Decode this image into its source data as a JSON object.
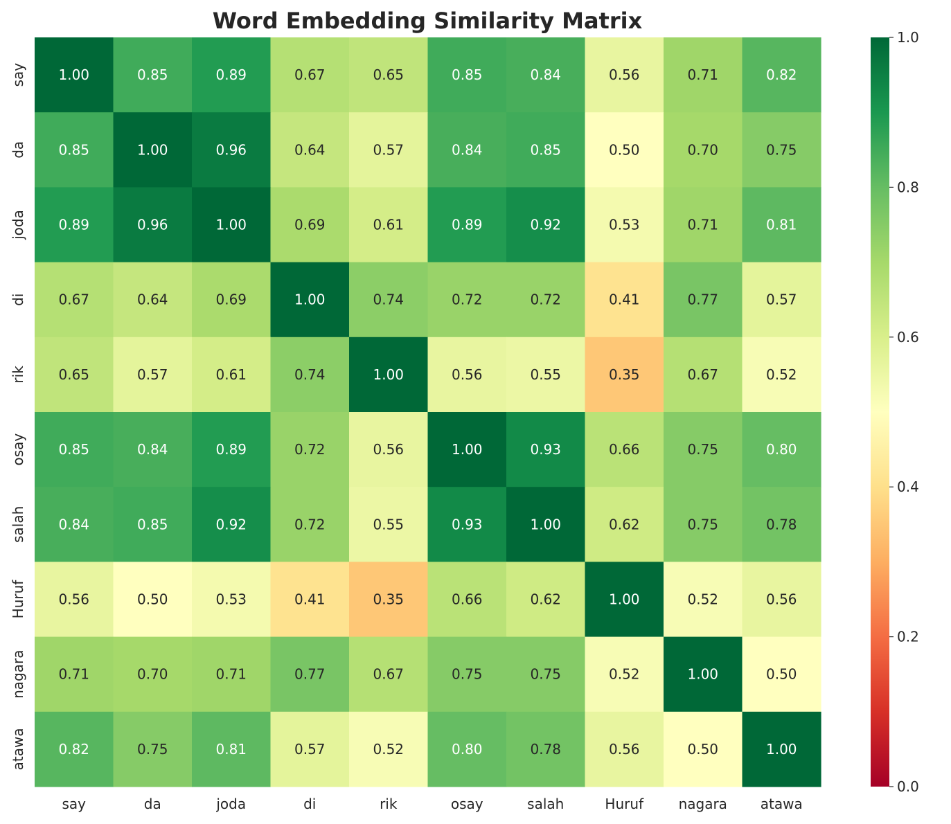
{
  "chart_data": {
    "type": "heatmap",
    "title": "Word Embedding Similarity Matrix",
    "xlabel": "",
    "ylabel": "",
    "x_categories": [
      "say",
      "da",
      "joda",
      "di",
      "rik",
      "osay",
      "salah",
      "Huruf",
      "nagara",
      "atawa"
    ],
    "y_categories": [
      "say",
      "da",
      "joda",
      "di",
      "rik",
      "osay",
      "salah",
      "Huruf",
      "nagara",
      "atawa"
    ],
    "values": [
      [
        1.0,
        0.85,
        0.89,
        0.67,
        0.65,
        0.85,
        0.84,
        0.56,
        0.71,
        0.82
      ],
      [
        0.85,
        1.0,
        0.96,
        0.64,
        0.57,
        0.84,
        0.85,
        0.5,
        0.7,
        0.75
      ],
      [
        0.89,
        0.96,
        1.0,
        0.69,
        0.61,
        0.89,
        0.92,
        0.53,
        0.71,
        0.81
      ],
      [
        0.67,
        0.64,
        0.69,
        1.0,
        0.74,
        0.72,
        0.72,
        0.41,
        0.77,
        0.57
      ],
      [
        0.65,
        0.57,
        0.61,
        0.74,
        1.0,
        0.56,
        0.55,
        0.35,
        0.67,
        0.52
      ],
      [
        0.85,
        0.84,
        0.89,
        0.72,
        0.56,
        1.0,
        0.93,
        0.66,
        0.75,
        0.8
      ],
      [
        0.84,
        0.85,
        0.92,
        0.72,
        0.55,
        0.93,
        1.0,
        0.62,
        0.75,
        0.78
      ],
      [
        0.56,
        0.5,
        0.53,
        0.41,
        0.35,
        0.66,
        0.62,
        1.0,
        0.52,
        0.56
      ],
      [
        0.71,
        0.7,
        0.71,
        0.77,
        0.67,
        0.75,
        0.75,
        0.52,
        1.0,
        0.5
      ],
      [
        0.82,
        0.75,
        0.81,
        0.57,
        0.52,
        0.8,
        0.78,
        0.56,
        0.5,
        1.0
      ]
    ],
    "value_format": "2 decimals",
    "colormap": "RdYlGn",
    "vmin": 0.0,
    "vmax": 1.0,
    "colorbar_ticks": [
      "0.0",
      "0.2",
      "0.4",
      "0.6",
      "0.8",
      "1.0"
    ],
    "colorbar_position": "right",
    "grid": false,
    "colormap_stops": [
      "#a50026",
      "#d73027",
      "#f46d43",
      "#fdae61",
      "#fee08b",
      "#ffffbf",
      "#d9ef8b",
      "#a6d96a",
      "#66bd63",
      "#1a9850",
      "#006837"
    ]
  }
}
